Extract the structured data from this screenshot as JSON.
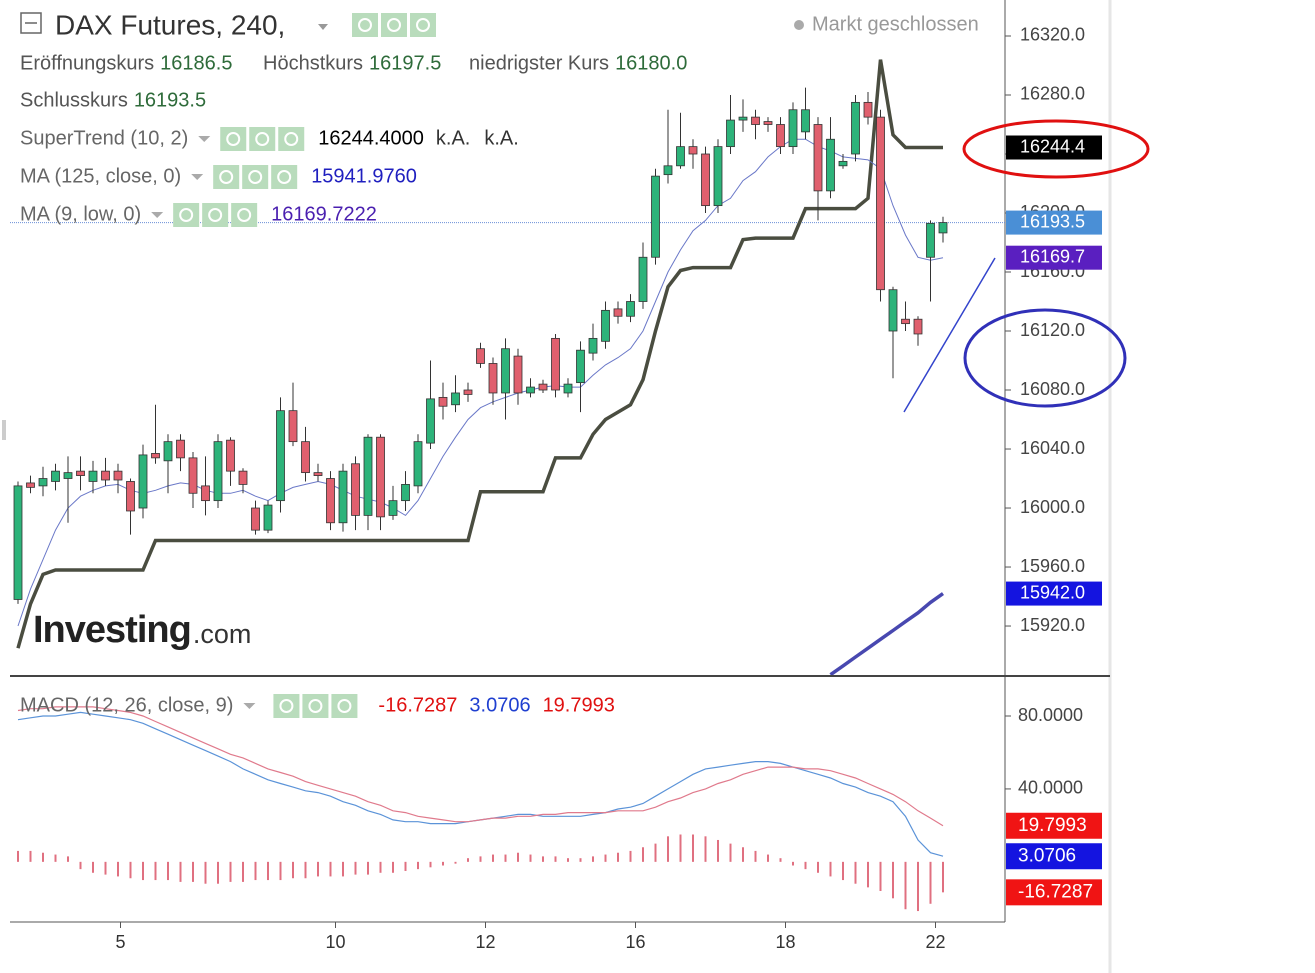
{
  "chart_data": {
    "type": "candlestick",
    "title": "DAX Futures, 240,",
    "status": "Markt geschlossen",
    "ohlc_labels": [
      {
        "name": "Eröffnungskurs",
        "value": "16186.5"
      },
      {
        "name": "Höchstkurs",
        "value": "16197.5"
      },
      {
        "name": "niedrigster Kurs",
        "value": "16180.0"
      },
      {
        "name": "Schlusskurs",
        "value": "16193.5"
      }
    ],
    "watermark": [
      "Investing",
      ".com"
    ],
    "up_color": "#2db37a",
    "down_color": "#e0606e",
    "open": [
      15938,
      16017,
      16015,
      16018,
      16020,
      16025,
      16018,
      16025,
      16025,
      16018,
      16000,
      16037,
      16032,
      16046,
      16034,
      16015,
      16005,
      16046,
      16025,
      16000,
      15985,
      16005,
      16066,
      16045,
      16024,
      16020,
      15990,
      16030,
      15995,
      16048,
      15995,
      16005,
      16015,
      16044,
      16075,
      16070,
      16080,
      16108,
      16098,
      16078,
      16103,
      16078,
      16084,
      16115,
      16078,
      16085,
      16105,
      16113,
      16135,
      16130,
      16140,
      16170,
      16226,
      16232,
      16245,
      16240,
      16205,
      16245,
      16263,
      16265,
      16262,
      16260,
      16245,
      16255,
      16260,
      16215,
      16232,
      16240,
      16275,
      16265,
      16120,
      16128,
      16128,
      16170,
      16186.5
    ],
    "high": [
      16018,
      16022,
      16028,
      16030,
      16035,
      16035,
      16032,
      16034,
      16030,
      16020,
      16043,
      16070,
      16050,
      16050,
      16038,
      16035,
      16050,
      16048,
      16027,
      16005,
      16005,
      16075,
      16085,
      16055,
      16030,
      16025,
      16030,
      16035,
      16050,
      16050,
      16015,
      16025,
      16050,
      16100,
      16085,
      16090,
      16085,
      16112,
      16102,
      16115,
      16108,
      16088,
      16087,
      16118,
      16088,
      16113,
      16125,
      16140,
      16140,
      16145,
      16180,
      16230,
      16270,
      16268,
      16250,
      16245,
      16250,
      16280,
      16277,
      16270,
      16265,
      16265,
      16275,
      16285,
      16265,
      16265,
      16240,
      16280,
      16282,
      16270,
      16150,
      16140,
      16130,
      16195,
      16197.5
    ],
    "low": [
      15935,
      16010,
      16008,
      16012,
      15990,
      16012,
      16010,
      16015,
      16010,
      15982,
      15993,
      16030,
      16010,
      16025,
      16000,
      15995,
      16000,
      16015,
      16010,
      15982,
      15983,
      15997,
      16042,
      16018,
      16018,
      15985,
      15984,
      15985,
      15985,
      15985,
      15992,
      15998,
      16010,
      16040,
      16060,
      16065,
      16072,
      16095,
      16070,
      16060,
      16070,
      16075,
      16078,
      16075,
      16075,
      16065,
      16100,
      16108,
      16125,
      16126,
      16135,
      16165,
      16220,
      16230,
      16230,
      16200,
      16200,
      16240,
      16255,
      16250,
      16255,
      16240,
      16240,
      16250,
      16195,
      16210,
      16230,
      16235,
      16260,
      16140,
      16088,
      16120,
      16110,
      16140,
      16180
    ],
    "close": [
      16015,
      16014,
      16020,
      16025,
      16024,
      16022,
      16025,
      16019,
      16019,
      15998,
      16036,
      16034,
      16045,
      16034,
      16010,
      16005,
      16045,
      16025,
      16016,
      15985,
      16002,
      16066,
      16045,
      16024,
      16022,
      15990,
      16025,
      15995,
      16048,
      15994,
      16005,
      16016,
      16045,
      16074,
      16069,
      16078,
      16077,
      16098,
      16078,
      16108,
      16078,
      16082,
      16080,
      16080,
      16084,
      16107,
      16115,
      16134,
      16130,
      16140,
      16170,
      16225,
      16232,
      16245,
      16240,
      16205,
      16245,
      16263,
      16265,
      16260,
      16260,
      16245,
      16270,
      16270,
      16215,
      16250,
      16235,
      16275,
      16265,
      16148,
      16148,
      16125,
      16118,
      16193,
      16193.5
    ],
    "series": [
      {
        "name": "SuperTrend (10, 2)",
        "color": "#4a4d40",
        "width": 3.5,
        "value_label": "16244.4000",
        "extra": [
          "k.A.",
          "k.A."
        ],
        "values": [
          15905,
          15935,
          15955,
          15958,
          15958,
          15958,
          15958,
          15958,
          15958,
          15958,
          15958,
          15978,
          15978,
          15978,
          15978,
          15978,
          15978,
          15978,
          15978,
          15978,
          15978,
          15978,
          15978,
          15978,
          15978,
          15978,
          15978,
          15978,
          15978,
          15978,
          15978,
          15978,
          15978,
          15978,
          15978,
          15978,
          15978,
          16011,
          16011,
          16011,
          16011,
          16011,
          16011,
          16034,
          16034,
          16034,
          16050,
          16060,
          16065,
          16070,
          16087,
          16120,
          16150,
          16161,
          16163,
          16163,
          16163,
          16163,
          16182,
          16183,
          16183,
          16183,
          16183,
          16203,
          16203,
          16203,
          16203,
          16203,
          16210,
          16304,
          16253,
          16244.4,
          16244.4,
          16244.4,
          16244.4
        ]
      },
      {
        "name": "MA (125, close, 0)",
        "color": "#4848b0",
        "width": 3.5,
        "value_label": "15941.9760",
        "label_color": "#1f1fbf",
        "values": [
          null,
          null,
          null,
          null,
          null,
          null,
          null,
          null,
          null,
          null,
          null,
          null,
          null,
          null,
          null,
          null,
          null,
          null,
          null,
          null,
          null,
          null,
          null,
          null,
          null,
          null,
          null,
          null,
          null,
          null,
          null,
          null,
          null,
          null,
          null,
          null,
          null,
          null,
          null,
          null,
          null,
          null,
          null,
          null,
          null,
          null,
          null,
          null,
          null,
          null,
          null,
          null,
          null,
          null,
          null,
          null,
          null,
          null,
          null,
          null,
          null,
          null,
          null,
          null,
          null,
          15887,
          15893,
          15899,
          15905,
          15911,
          15917,
          15923,
          15929,
          15936,
          15941.976
        ]
      },
      {
        "name": "MA (9, low, 0)",
        "color": "#6a78c8",
        "width": 1,
        "value_label": "16169.7222",
        "label_color": "#4a1fb0",
        "values": [
          15920,
          15945,
          15965,
          15985,
          16000,
          16008,
          16012,
          16015,
          16016,
          16012,
          16010,
          16012,
          16015,
          16017,
          16016,
          16012,
          16010,
          16010,
          16012,
          16008,
          16005,
          16010,
          16014,
          16016,
          16018,
          16016,
          16012,
          16008,
          16006,
          16004,
          16000,
          15995,
          16005,
          16020,
          16035,
          16048,
          16060,
          16068,
          16072,
          16075,
          16078,
          16080,
          16082,
          16083,
          16082,
          16082,
          16090,
          16097,
          16102,
          16108,
          16120,
          16140,
          16160,
          16175,
          16188,
          16195,
          16205,
          16210,
          16222,
          16228,
          16238,
          16245,
          16250,
          16250,
          16245,
          16242,
          16238,
          16237,
          16236,
          16230,
          16205,
          16185,
          16170,
          16168,
          16169.7222
        ]
      }
    ],
    "ylim": [
      15886.8,
      16344.4
    ],
    "yticks": [
      {
        "value": 16320,
        "label": "16320.0"
      },
      {
        "value": 16280,
        "label": "16280.0"
      },
      {
        "value": 16240,
        "label": "16240.0"
      },
      {
        "value": 16200,
        "label": "16200.0"
      },
      {
        "value": 16160,
        "label": "16160.0"
      },
      {
        "value": 16120,
        "label": "16120.0"
      },
      {
        "value": 16080,
        "label": "16080.0"
      },
      {
        "value": 16040,
        "label": "16040.0"
      },
      {
        "value": 16000,
        "label": "16000.0"
      },
      {
        "value": 15960,
        "label": "15960.0"
      },
      {
        "value": 15920,
        "label": "15920.0"
      }
    ],
    "badges": [
      {
        "value": 16244.4,
        "label": "16244.4",
        "color": "#000000"
      },
      {
        "value": 16193.5,
        "label": "16193.5",
        "color": "#4a8fd6"
      },
      {
        "value": 16169.7,
        "label": "16169.7",
        "color": "#5a1fc0"
      },
      {
        "value": 15942.0,
        "label": "15942.0",
        "color": "#1414e0"
      }
    ],
    "xticks": [
      {
        "value": 8.2,
        "label": "5"
      },
      {
        "value": 25.4,
        "label": "10"
      },
      {
        "value": 37.4,
        "label": "12"
      },
      {
        "value": 49.4,
        "label": "16"
      },
      {
        "value": 61.4,
        "label": "18"
      },
      {
        "value": 73.4,
        "label": "22"
      }
    ],
    "macd": {
      "name": "MACD (12, 26, close, 9)",
      "ylim": [
        -33,
        101.4
      ],
      "yticks": [
        {
          "value": 80,
          "label": "80.0000"
        },
        {
          "value": 40,
          "label": "40.0000"
        }
      ],
      "legend_values": [
        {
          "label": "-16.7287",
          "color": "#e01010"
        },
        {
          "label": "3.0706",
          "color": "#1f3fd0"
        },
        {
          "label": "19.7993",
          "color": "#e01010"
        }
      ],
      "histogram": {
        "color": "#e07080",
        "values": [
          6,
          6,
          5,
          4,
          3,
          -4,
          -6,
          -7,
          -8,
          -9,
          -10,
          -10,
          -10,
          -11,
          -11,
          -12,
          -12,
          -11,
          -11,
          -10,
          -10,
          -10,
          -9,
          -9,
          -8,
          -8,
          -8,
          -7,
          -7,
          -6,
          -6,
          -5,
          -4,
          -3,
          -2,
          -1,
          2,
          3,
          4,
          4,
          5,
          4,
          3,
          3,
          2,
          2,
          3,
          4,
          5,
          6,
          8,
          10,
          14,
          15,
          15,
          14,
          12,
          10,
          8,
          6,
          4,
          2,
          -2,
          -4,
          -6,
          -8,
          -10,
          -12,
          -14,
          -16,
          -20,
          -26,
          -27,
          -23,
          -16.7287
        ]
      },
      "lines": [
        {
          "color": "#5b93d8",
          "values": [
            78,
            79,
            80,
            80,
            81,
            82,
            81,
            80,
            79,
            78,
            76,
            73,
            70,
            67,
            64,
            61,
            58,
            55,
            51,
            48,
            45,
            43,
            41,
            39,
            38,
            36,
            33,
            31,
            28,
            26,
            23,
            22,
            22,
            21,
            21,
            21,
            22,
            23,
            24,
            25,
            26,
            26,
            25,
            25,
            25,
            25,
            26,
            27,
            29,
            30,
            32,
            36,
            40,
            44,
            48,
            51,
            52,
            53,
            54,
            55,
            55,
            54,
            52,
            50,
            48,
            46,
            43,
            41,
            38,
            36,
            33,
            25,
            12,
            5,
            3.0706
          ]
        },
        {
          "color": "#e07a8c",
          "values": [
            83,
            84,
            84,
            85,
            85,
            85,
            85,
            84,
            83,
            82,
            80,
            77,
            74,
            71,
            68,
            65,
            62,
            59,
            57,
            54,
            51,
            49,
            47,
            44,
            42,
            40,
            38,
            36,
            33,
            31,
            28,
            27,
            25,
            24,
            23,
            22,
            22,
            23,
            24,
            24,
            25,
            25,
            26,
            26,
            27,
            27,
            27,
            27,
            28,
            28,
            28,
            30,
            33,
            35,
            38,
            40,
            43,
            45,
            48,
            50,
            52,
            52,
            52,
            51,
            51,
            50,
            48,
            46,
            43,
            40,
            37,
            33,
            28,
            24,
            19.7993
          ]
        }
      ],
      "badges": [
        {
          "value": 19.7993,
          "label": "19.7993",
          "color": "#f01414"
        },
        {
          "value": 3.0706,
          "label": "3.0706",
          "color": "#1414e0"
        },
        {
          "value": -16.7287,
          "label": "-16.7287",
          "color": "#f01414"
        }
      ]
    }
  }
}
